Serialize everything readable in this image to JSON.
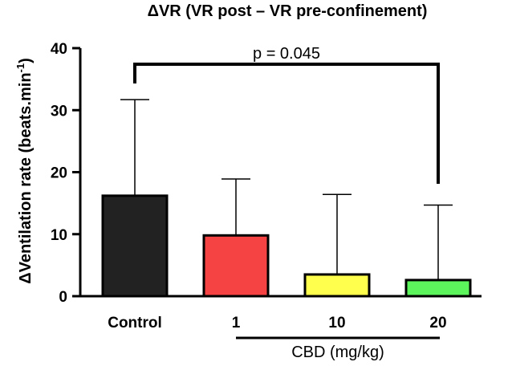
{
  "chart_data": {
    "type": "bar",
    "title": "ΔVR (VR post – VR pre-confinement)",
    "ylabel_main": "ΔVentilation rate (beats.min",
    "ylabel_sup": "-1",
    "ylabel_close": ")",
    "ylim": [
      0,
      40
    ],
    "yticks": [
      0,
      10,
      20,
      30,
      40
    ],
    "grid": false,
    "categories": [
      "Control",
      "1",
      "10",
      "20"
    ],
    "values": [
      16.2,
      9.8,
      3.5,
      2.6
    ],
    "error_upper": [
      31.7,
      18.9,
      16.4,
      14.7
    ],
    "colors": [
      "#222222",
      "#f54242",
      "#ffff4d",
      "#5cf55c"
    ],
    "group_label": "CBD (mg/kg)",
    "annotation": {
      "text": "p = 0.045",
      "from_category": "Control",
      "to_category": "20"
    }
  }
}
